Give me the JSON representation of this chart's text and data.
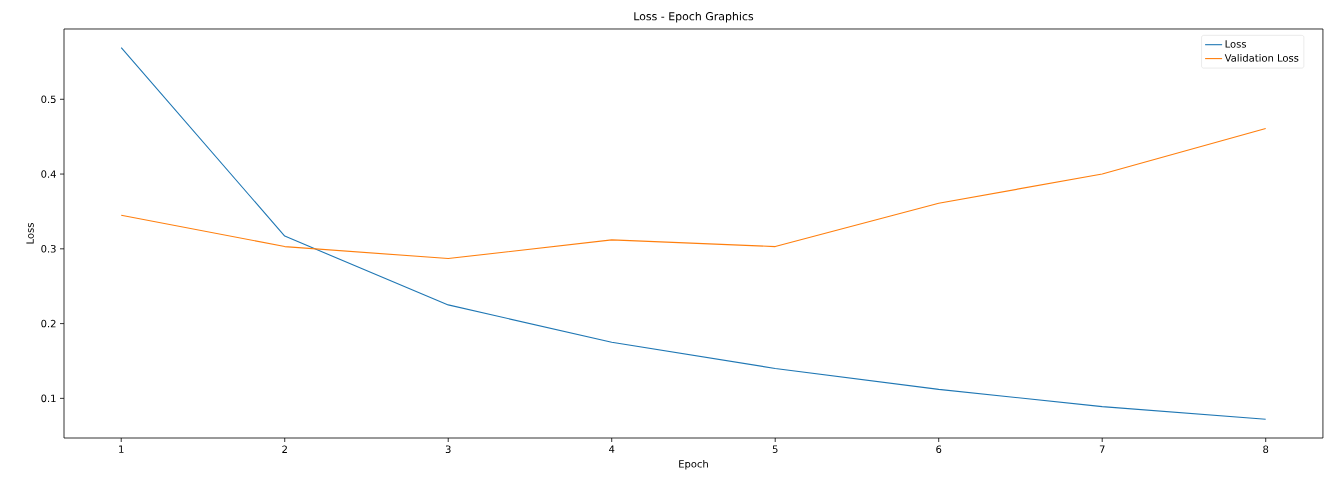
{
  "chart_data": {
    "type": "line",
    "title": "Loss - Epoch Graphics",
    "xlabel": "Epoch",
    "ylabel": "Loss",
    "x": [
      1,
      2,
      3,
      4,
      5,
      6,
      7,
      8
    ],
    "series": [
      {
        "name": "Loss",
        "color": "#1f77b4",
        "values": [
          0.569,
          0.317,
          0.225,
          0.175,
          0.14,
          0.112,
          0.089,
          0.072
        ]
      },
      {
        "name": "Validation Loss",
        "color": "#ff7f0e",
        "values": [
          0.345,
          0.303,
          0.287,
          0.312,
          0.303,
          0.361,
          0.4,
          0.461
        ]
      }
    ],
    "xlim": [
      0.65,
      8.35
    ],
    "ylim": [
      0.047,
      0.594
    ],
    "xticks": [
      1,
      2,
      3,
      4,
      5,
      6,
      7,
      8
    ],
    "yticks": [
      0.1,
      0.2,
      0.3,
      0.4,
      0.5
    ],
    "legend": "top right"
  }
}
